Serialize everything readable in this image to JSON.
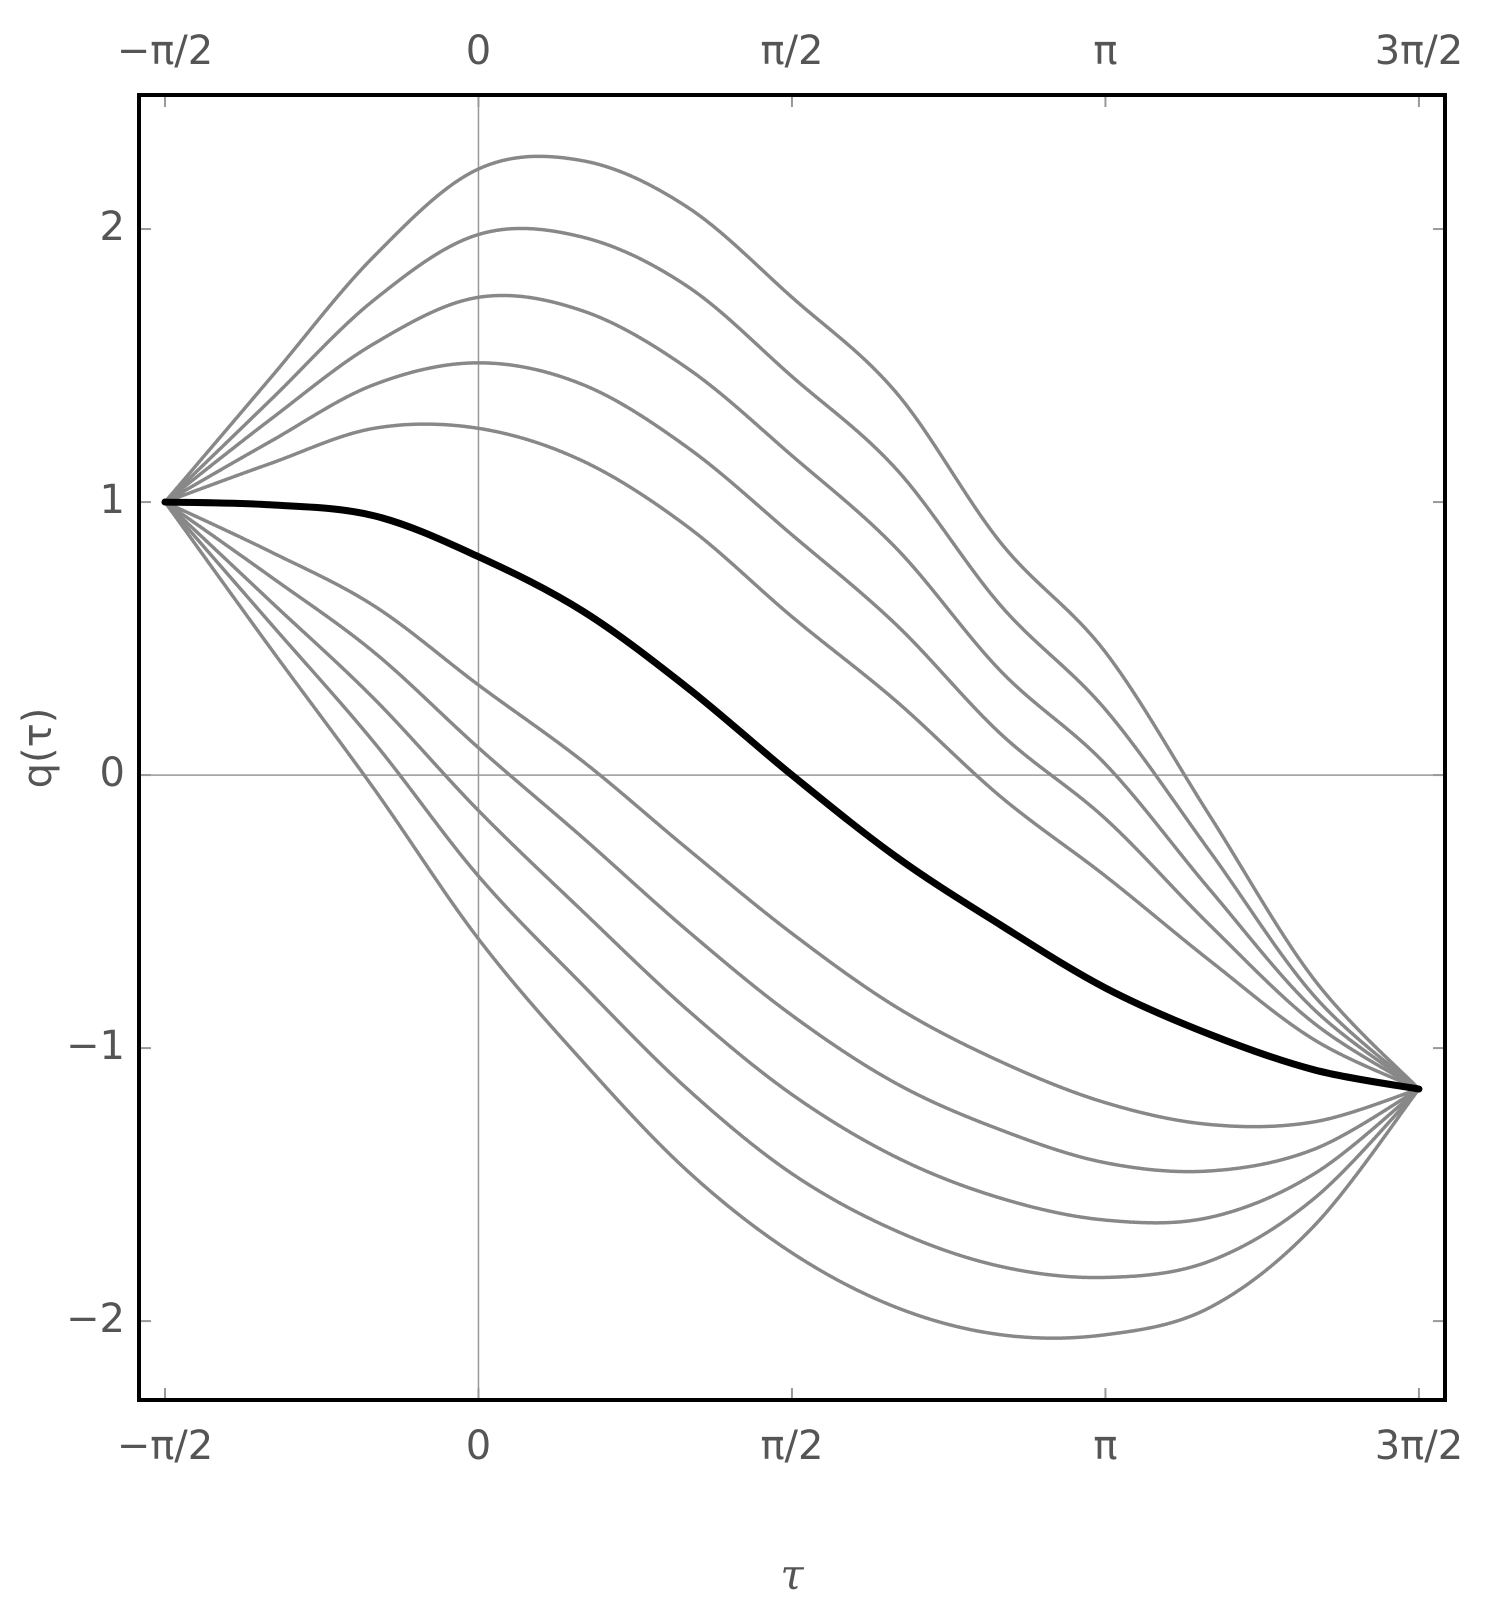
{
  "chart_data": {
    "type": "line",
    "xlabel": "τ",
    "ylabel": "q(τ)",
    "x": [
      -1.5708,
      -1.0472,
      -0.5236,
      0,
      0.5236,
      1.0472,
      1.5708,
      2.0944,
      2.618,
      3.1416,
      3.6652,
      4.1888,
      4.7124
    ],
    "series": [
      {
        "color": "#888888",
        "values": [
          1,
          1.45,
          1.9,
          2.22,
          2.25,
          2.08,
          1.75,
          1.4,
          0.85,
          0.45,
          -0.15,
          -0.75,
          -1.15
        ]
      },
      {
        "color": "#888888",
        "values": [
          1,
          1.37,
          1.74,
          1.98,
          1.97,
          1.79,
          1.46,
          1.12,
          0.62,
          0.24,
          -0.28,
          -0.81,
          -1.15
        ]
      },
      {
        "color": "#888888",
        "values": [
          1,
          1.3,
          1.58,
          1.75,
          1.7,
          1.49,
          1.17,
          0.83,
          0.38,
          0.04,
          -0.42,
          -0.86,
          -1.15
        ]
      },
      {
        "color": "#888888",
        "values": [
          1,
          1.22,
          1.43,
          1.51,
          1.43,
          1.2,
          0.88,
          0.55,
          0.15,
          -0.16,
          -0.55,
          -0.91,
          -1.15
        ]
      },
      {
        "color": "#888888",
        "values": [
          1,
          1.14,
          1.27,
          1.27,
          1.15,
          0.91,
          0.58,
          0.27,
          -0.08,
          -0.37,
          -0.68,
          -0.97,
          -1.15
        ]
      },
      {
        "color": "#888888",
        "values": [
          1,
          0.82,
          0.62,
          0.33,
          0.05,
          -0.27,
          -0.58,
          -0.85,
          -1.05,
          -1.2,
          -1.28,
          -1.27,
          -1.15
        ]
      },
      {
        "color": "#888888",
        "values": [
          1,
          0.73,
          0.45,
          0.1,
          -0.23,
          -0.57,
          -0.88,
          -1.13,
          -1.3,
          -1.42,
          -1.45,
          -1.37,
          -1.15
        ]
      },
      {
        "color": "#888888",
        "values": [
          1,
          0.64,
          0.28,
          -0.13,
          -0.5,
          -0.86,
          -1.17,
          -1.4,
          -1.55,
          -1.63,
          -1.62,
          -1.46,
          -1.15
        ]
      },
      {
        "color": "#888888",
        "values": [
          1,
          0.56,
          0.12,
          -0.37,
          -0.77,
          -1.15,
          -1.46,
          -1.67,
          -1.8,
          -1.84,
          -1.78,
          -1.55,
          -1.15
        ]
      },
      {
        "color": "#888888",
        "values": [
          1,
          0.47,
          -0.05,
          -0.6,
          -1.05,
          -1.45,
          -1.75,
          -1.95,
          -2.05,
          -2.05,
          -1.95,
          -1.65,
          -1.15
        ]
      },
      {
        "color": "#000000",
        "values": [
          1,
          0.99,
          0.95,
          0.8,
          0.6,
          0.32,
          0,
          -0.3,
          -0.55,
          -0.78,
          -0.95,
          -1.08,
          -1.15
        ]
      }
    ],
    "xlim": [
      -1.701,
      4.843
    ],
    "ylim": [
      -2.289,
      2.491
    ],
    "xticks": [
      {
        "value": -1.5708,
        "label": "−π/2"
      },
      0,
      {
        "value": 1.5708,
        "label": "π/2"
      },
      {
        "value": 3.1416,
        "label": "π"
      },
      {
        "value": 4.7124,
        "label": "3π/2"
      }
    ],
    "yticks": [
      {
        "value": -2,
        "label": "−2"
      },
      {
        "value": -1,
        "label": "−1"
      },
      0,
      1,
      2
    ],
    "grid": false
  }
}
